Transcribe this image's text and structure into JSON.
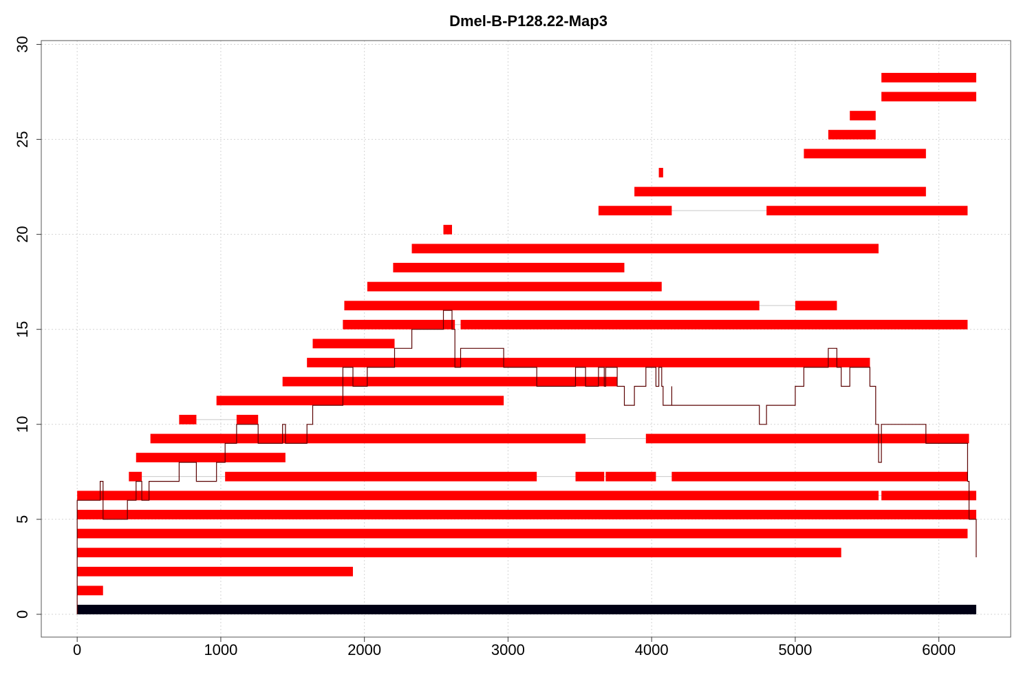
{
  "chart_data": {
    "type": "bar",
    "title": "Dmel-B-P128.22-Map3",
    "xlabel": "",
    "ylabel": "",
    "xlim": [
      -250,
      6500
    ],
    "ylim": [
      -1.2,
      30.2
    ],
    "xticks": [
      0,
      1000,
      2000,
      3000,
      4000,
      5000,
      6000
    ],
    "yticks": [
      0,
      5,
      10,
      15,
      20,
      25,
      30
    ],
    "grid": true,
    "colors": {
      "segment": "#ff0000",
      "reference": "#000014",
      "gap": "#c8c8c8",
      "coverage": "#5a0000",
      "grid": "#d3d3d3"
    },
    "reference": {
      "y": 0.25,
      "x0": 0,
      "x1": 6260,
      "height": 0.5
    },
    "segment_height": 0.5,
    "segments": [
      {
        "y": 1.25,
        "parts": [
          [
            0,
            180
          ]
        ]
      },
      {
        "y": 2.25,
        "parts": [
          [
            0,
            1920
          ]
        ]
      },
      {
        "y": 3.25,
        "parts": [
          [
            0,
            5320
          ]
        ]
      },
      {
        "y": 4.25,
        "parts": [
          [
            0,
            6200
          ]
        ]
      },
      {
        "y": 5.25,
        "parts": [
          [
            0,
            6260
          ]
        ]
      },
      {
        "y": 6.25,
        "parts": [
          [
            0,
            5580
          ],
          [
            5600,
            6260
          ]
        ]
      },
      {
        "y": 7.25,
        "parts": [
          [
            360,
            450
          ],
          [
            1030,
            3200
          ],
          [
            3470,
            3670
          ],
          [
            3680,
            4030
          ],
          [
            4140,
            6200
          ]
        ]
      },
      {
        "y": 8.25,
        "parts": [
          [
            410,
            1450
          ]
        ]
      },
      {
        "y": 9.25,
        "parts": [
          [
            510,
            3540
          ],
          [
            3960,
            6210
          ]
        ]
      },
      {
        "y": 10.25,
        "parts": [
          [
            710,
            830
          ],
          [
            1110,
            1260
          ]
        ]
      },
      {
        "y": 11.25,
        "parts": [
          [
            970,
            2970
          ]
        ]
      },
      {
        "y": 12.25,
        "parts": [
          [
            1430,
            3760
          ]
        ]
      },
      {
        "y": 13.25,
        "parts": [
          [
            1600,
            5520
          ]
        ]
      },
      {
        "y": 14.25,
        "parts": [
          [
            1640,
            2210
          ]
        ]
      },
      {
        "y": 15.25,
        "parts": [
          [
            1850,
            2630
          ],
          [
            2670,
            6200
          ]
        ]
      },
      {
        "y": 16.25,
        "parts": [
          [
            1860,
            4750
          ],
          [
            5000,
            5290
          ]
        ]
      },
      {
        "y": 17.25,
        "parts": [
          [
            2020,
            4070
          ]
        ]
      },
      {
        "y": 18.25,
        "parts": [
          [
            2200,
            3810
          ]
        ]
      },
      {
        "y": 19.25,
        "parts": [
          [
            2330,
            5580
          ]
        ]
      },
      {
        "y": 20.25,
        "parts": [
          [
            2550,
            2610
          ]
        ]
      },
      {
        "y": 21.25,
        "parts": [
          [
            3630,
            4140
          ],
          [
            4800,
            6200
          ]
        ]
      },
      {
        "y": 22.25,
        "parts": [
          [
            3880,
            5910
          ]
        ]
      },
      {
        "y": 23.25,
        "parts": [
          [
            4050,
            4080
          ]
        ]
      },
      {
        "y": 24.25,
        "parts": [
          [
            5060,
            5910
          ]
        ]
      },
      {
        "y": 25.25,
        "parts": [
          [
            5230,
            5560
          ]
        ]
      },
      {
        "y": 26.25,
        "parts": [
          [
            5380,
            5560
          ]
        ]
      },
      {
        "y": 27.25,
        "parts": [
          [
            5600,
            6260
          ]
        ]
      },
      {
        "y": 28.25,
        "parts": [
          [
            5600,
            6260
          ]
        ]
      }
    ],
    "coverage_line": [
      [
        0,
        0
      ],
      [
        0,
        6
      ],
      [
        160,
        6
      ],
      [
        160,
        7
      ],
      [
        180,
        7
      ],
      [
        180,
        5
      ],
      [
        350,
        5
      ],
      [
        350,
        6
      ],
      [
        410,
        6
      ],
      [
        410,
        7
      ],
      [
        450,
        7
      ],
      [
        450,
        6
      ],
      [
        500,
        6
      ],
      [
        500,
        7
      ],
      [
        710,
        7
      ],
      [
        710,
        8
      ],
      [
        830,
        8
      ],
      [
        830,
        7
      ],
      [
        970,
        7
      ],
      [
        970,
        8
      ],
      [
        1030,
        8
      ],
      [
        1030,
        9
      ],
      [
        1110,
        9
      ],
      [
        1110,
        10
      ],
      [
        1260,
        10
      ],
      [
        1260,
        9
      ],
      [
        1430,
        9
      ],
      [
        1430,
        10
      ],
      [
        1450,
        10
      ],
      [
        1450,
        9
      ],
      [
        1600,
        9
      ],
      [
        1600,
        10
      ],
      [
        1640,
        10
      ],
      [
        1640,
        11
      ],
      [
        1850,
        11
      ],
      [
        1850,
        13
      ],
      [
        1920,
        13
      ],
      [
        1920,
        12
      ],
      [
        2020,
        12
      ],
      [
        2020,
        13
      ],
      [
        2210,
        13
      ],
      [
        2210,
        14
      ],
      [
        2330,
        14
      ],
      [
        2330,
        15
      ],
      [
        2550,
        15
      ],
      [
        2550,
        16
      ],
      [
        2610,
        16
      ],
      [
        2610,
        15
      ],
      [
        2630,
        15
      ],
      [
        2630,
        14
      ],
      [
        2630,
        13
      ],
      [
        2670,
        13
      ],
      [
        2670,
        14
      ],
      [
        2970,
        14
      ],
      [
        2970,
        13
      ],
      [
        3200,
        13
      ],
      [
        3200,
        12
      ],
      [
        3470,
        12
      ],
      [
        3470,
        13
      ],
      [
        3540,
        13
      ],
      [
        3540,
        12
      ],
      [
        3630,
        12
      ],
      [
        3630,
        13
      ],
      [
        3670,
        13
      ],
      [
        3670,
        12
      ],
      [
        3680,
        12
      ],
      [
        3680,
        13
      ],
      [
        3760,
        13
      ],
      [
        3760,
        12
      ],
      [
        3810,
        12
      ],
      [
        3810,
        11
      ],
      [
        3880,
        11
      ],
      [
        3880,
        12
      ],
      [
        3960,
        12
      ],
      [
        3960,
        13
      ],
      [
        4030,
        13
      ],
      [
        4030,
        12
      ],
      [
        4050,
        12
      ],
      [
        4050,
        13
      ],
      [
        4070,
        13
      ],
      [
        4070,
        12
      ],
      [
        4080,
        12
      ],
      [
        4080,
        11
      ],
      [
        4140,
        11
      ],
      [
        4140,
        12
      ],
      [
        4140,
        11
      ],
      [
        4750,
        11
      ],
      [
        4750,
        10
      ],
      [
        4800,
        10
      ],
      [
        4800,
        11
      ],
      [
        5000,
        11
      ],
      [
        5000,
        12
      ],
      [
        5060,
        12
      ],
      [
        5060,
        13
      ],
      [
        5230,
        13
      ],
      [
        5230,
        14
      ],
      [
        5290,
        14
      ],
      [
        5290,
        13
      ],
      [
        5320,
        13
      ],
      [
        5320,
        12
      ],
      [
        5380,
        12
      ],
      [
        5380,
        13
      ],
      [
        5520,
        13
      ],
      [
        5520,
        12
      ],
      [
        5560,
        12
      ],
      [
        5560,
        10
      ],
      [
        5580,
        10
      ],
      [
        5580,
        8
      ],
      [
        5600,
        8
      ],
      [
        5600,
        10
      ],
      [
        5910,
        10
      ],
      [
        5910,
        9
      ],
      [
        6200,
        9
      ],
      [
        6200,
        7
      ],
      [
        6210,
        7
      ],
      [
        6210,
        5
      ],
      [
        6260,
        5
      ],
      [
        6260,
        3
      ]
    ]
  }
}
